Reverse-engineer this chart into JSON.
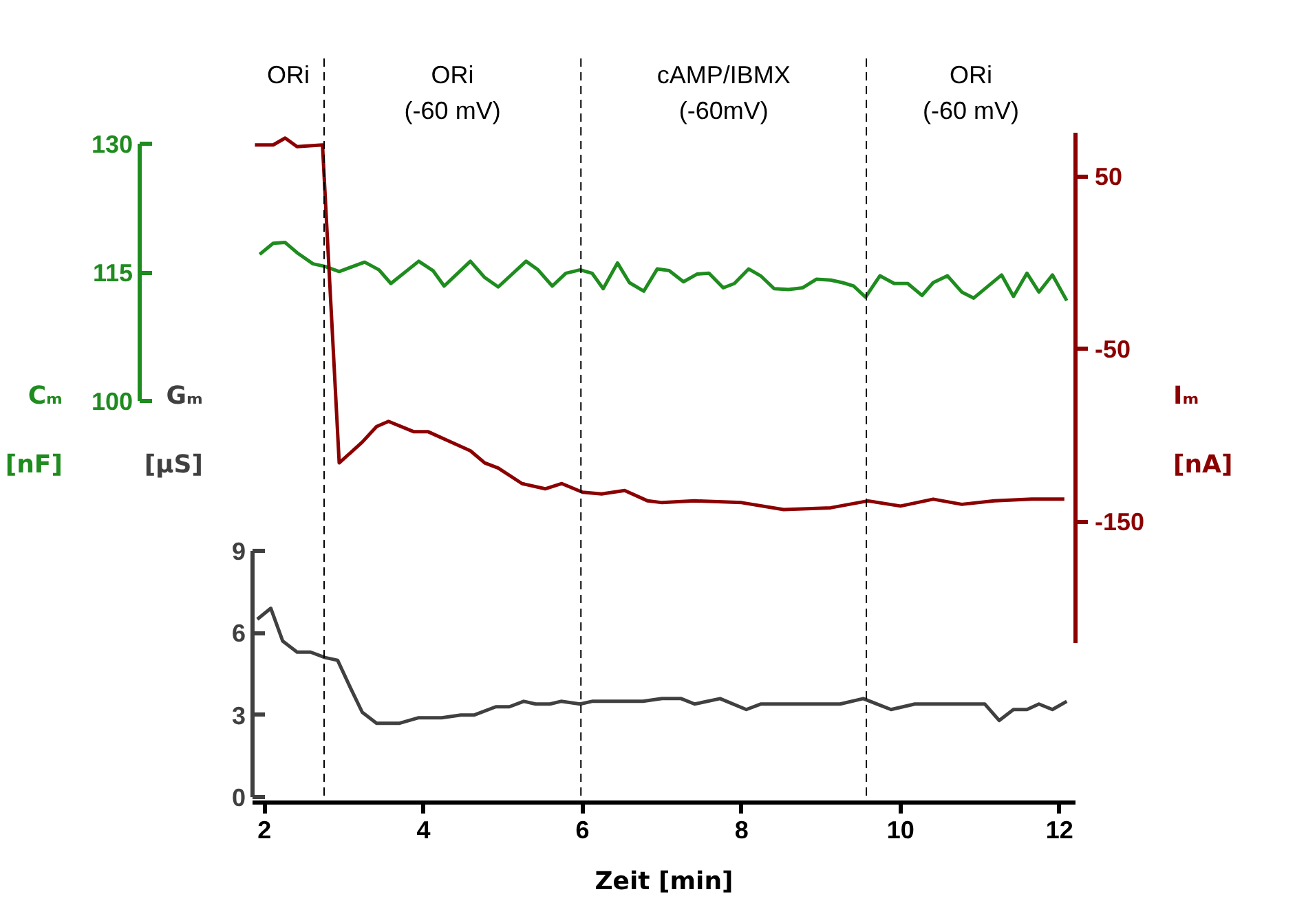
{
  "chart_data": {
    "type": "line",
    "xlabel": "Zeit [min]",
    "ylabel": "Gₘ [µS]",
    "y2label": "Cₘ [nF]",
    "y3label": "Iₘ [nA]",
    "xlim": [
      1.85,
      12.2
    ],
    "xticks": [
      2,
      4,
      6,
      8,
      10,
      12
    ],
    "ylim": [
      -0.2,
      27
    ],
    "yticks": [
      0,
      3,
      6,
      9
    ],
    "y2lim": [
      100,
      130
    ],
    "y2ticks": [
      100,
      115,
      130
    ],
    "y3lim": [
      -220,
      75
    ],
    "y3ticks": [
      50,
      -50,
      -150
    ],
    "grid": false,
    "line_style": "solid",
    "marker": "none",
    "series": [
      {
        "axis": "y2",
        "color": "#1e8c1e",
        "x": [
          1.94,
          2.11,
          2.26,
          2.41,
          2.61,
          2.76,
          2.94,
          3.26,
          3.44,
          3.59,
          3.94,
          4.12,
          4.26,
          4.59,
          4.77,
          4.94,
          5.29,
          5.44,
          5.62,
          5.79,
          5.97,
          6.12,
          6.26,
          6.44,
          6.59,
          6.77,
          6.94,
          7.09,
          7.27,
          7.44,
          7.59,
          7.77,
          7.91,
          8.09,
          8.24,
          8.41,
          8.59,
          8.77,
          8.94,
          9.12,
          9.27,
          9.41,
          9.56,
          9.74,
          9.92,
          10.09,
          10.27,
          10.41,
          10.59,
          10.77,
          10.92,
          11.27,
          11.42,
          11.59,
          11.74,
          11.91,
          12.09
        ],
        "values": [
          117.1,
          118.4,
          118.5,
          117.3,
          116.0,
          115.7,
          115.1,
          116.2,
          115.3,
          113.7,
          116.3,
          115.2,
          113.4,
          116.3,
          114.4,
          113.3,
          116.3,
          115.3,
          113.4,
          114.9,
          115.3,
          114.9,
          113.1,
          116.1,
          113.8,
          112.8,
          115.4,
          115.2,
          113.9,
          114.8,
          114.9,
          113.2,
          113.7,
          115.4,
          114.6,
          113.1,
          113.0,
          113.2,
          114.2,
          114.1,
          113.8,
          113.4,
          112.1,
          114.6,
          113.7,
          113.7,
          112.3,
          113.8,
          114.6,
          112.7,
          112.0,
          114.7,
          112.2,
          114.9,
          112.7,
          114.7,
          111.7
        ]
      },
      {
        "axis": "y3",
        "color": "#8b0000",
        "x": [
          1.88,
          2.11,
          2.26,
          2.41,
          2.73,
          2.94,
          3.23,
          3.41,
          3.56,
          3.88,
          4.06,
          4.35,
          4.59,
          4.77,
          4.94,
          5.24,
          5.53,
          5.74,
          6.0,
          6.24,
          6.53,
          6.82,
          7.0,
          7.41,
          8.0,
          8.53,
          9.12,
          9.59,
          10.0,
          10.41,
          10.77,
          11.18,
          11.65,
          12.06
        ],
        "values": [
          68,
          68,
          72,
          67,
          68,
          -116,
          -104,
          -95,
          -92,
          -98,
          -98,
          -104,
          -109,
          -116,
          -119,
          -128,
          -131,
          -128,
          -133,
          -134,
          -132,
          -138,
          -139,
          -138,
          -139,
          -143,
          -142,
          -138,
          -141,
          -137,
          -140,
          -138,
          -137,
          -137
        ]
      },
      {
        "axis": "y",
        "color": "#404040",
        "x": [
          1.91,
          2.08,
          2.23,
          2.41,
          2.58,
          2.76,
          2.92,
          3.08,
          3.23,
          3.41,
          3.7,
          3.94,
          4.23,
          4.47,
          4.64,
          4.91,
          5.08,
          5.26,
          5.41,
          5.59,
          5.73,
          5.97,
          6.12,
          6.76,
          7.0,
          7.24,
          7.41,
          7.73,
          8.06,
          8.24,
          8.59,
          8.77,
          9.24,
          9.53,
          9.88,
          10.18,
          10.71,
          11.06,
          11.24,
          11.42,
          11.59,
          11.74,
          11.91,
          12.09
        ],
        "values": [
          6.5,
          6.9,
          5.7,
          5.3,
          5.3,
          5.1,
          5.0,
          4.0,
          3.1,
          2.7,
          2.7,
          2.9,
          2.9,
          3.0,
          3.0,
          3.3,
          3.3,
          3.5,
          3.4,
          3.4,
          3.5,
          3.4,
          3.5,
          3.5,
          3.6,
          3.6,
          3.4,
          3.6,
          3.2,
          3.4,
          3.4,
          3.4,
          3.4,
          3.6,
          3.2,
          3.4,
          3.4,
          3.4,
          2.8,
          3.2,
          3.2,
          3.4,
          3.2,
          3.5
        ]
      }
    ],
    "ref_lines": [
      {
        "axis": "x",
        "value": 2.75,
        "color": "#000000",
        "line_style": "dashed"
      },
      {
        "axis": "x",
        "value": 5.98,
        "color": "#000000",
        "line_style": "dashed"
      },
      {
        "axis": "x",
        "value": 9.57,
        "color": "#000000",
        "line_style": "dashed"
      }
    ],
    "annotations": [
      "ORi",
      "ORi (-60 mV)",
      "cAMP/IBMX (-60mV)",
      "ORi (-60 mV)"
    ]
  }
}
